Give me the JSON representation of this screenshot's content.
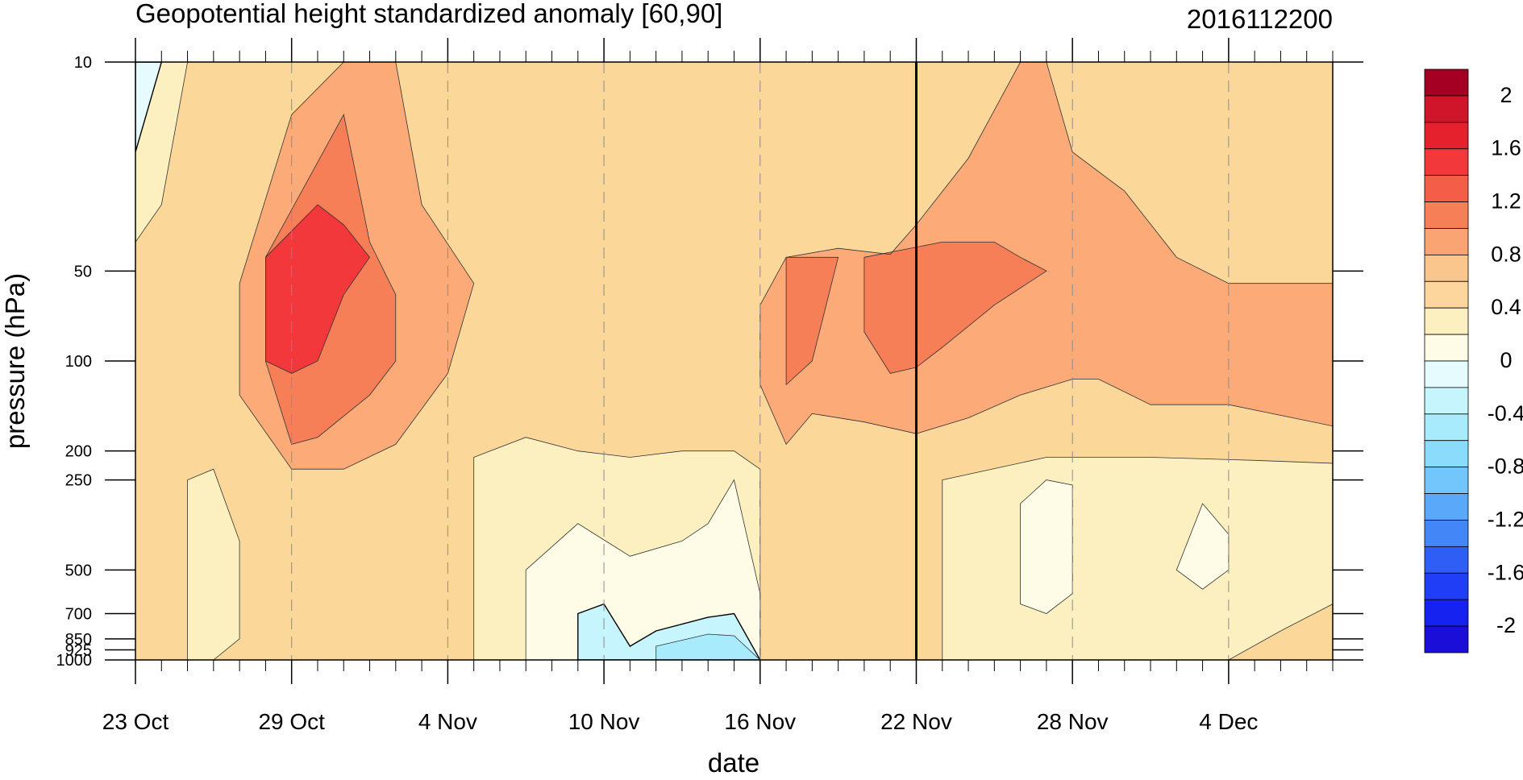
{
  "chart_data": {
    "type": "heatmap",
    "title": "Geopotential height standardized anomaly [60,90]",
    "subtitle": "2016112200",
    "xlabel": "date",
    "ylabel": "pressure (hPa)",
    "x_tick_labels": [
      "23 Oct",
      "29 Oct",
      "4 Nov",
      "10 Nov",
      "16 Nov",
      "22 Nov",
      "28 Nov",
      "4 Dec"
    ],
    "x_dates": [
      "2016-10-23",
      "2016-10-29",
      "2016-11-04",
      "2016-11-10",
      "2016-11-16",
      "2016-11-22",
      "2016-11-28",
      "2016-12-04"
    ],
    "xlim": [
      "2016-10-23",
      "2016-12-08"
    ],
    "y_tick_labels": [
      "10",
      "50",
      "100",
      "200",
      "250",
      "500",
      "700",
      "850",
      "925",
      "1000"
    ],
    "y_levels": [
      10,
      50,
      100,
      200,
      250,
      500,
      700,
      850,
      925,
      1000
    ],
    "ylim": [
      1000,
      10
    ],
    "y_scale": "log",
    "y_reversed": true,
    "marker_line_date": "2016-11-22",
    "colorbar": {
      "tick_labels": [
        "2",
        "1.6",
        "1.2",
        "0.8",
        "0.4",
        "0",
        "-0.4",
        "-0.8",
        "-1.2",
        "-1.6",
        "-2"
      ],
      "levels": [
        -2.2,
        -2.0,
        -1.8,
        -1.6,
        -1.4,
        -1.2,
        -1.0,
        -0.8,
        -0.6,
        -0.4,
        -0.2,
        0.0,
        0.2,
        0.4,
        0.6,
        0.8,
        1.0,
        1.2,
        1.4,
        1.6,
        1.8,
        2.0,
        2.2
      ],
      "colors": [
        "#1a0ed8",
        "#1522f0",
        "#203ef5",
        "#2f5ef6",
        "#4386f8",
        "#5aa8fa",
        "#72c6fb",
        "#8bdcfc",
        "#a7ebfd",
        "#c6f5fe",
        "#e5fbfe",
        "#fefbe6",
        "#fdf0c0",
        "#fcd69c",
        "#fbc58e",
        "#faa373",
        "#f77f58",
        "#f45e49",
        "#f2383b",
        "#e6212e",
        "#d0152a",
        "#a50023"
      ]
    },
    "regions": [
      {
        "level": 0.6,
        "color": "#fbd79a",
        "points": [
          [
            "2016-10-23",
            10
          ],
          [
            "2016-12-08",
            10
          ],
          [
            "2016-12-08",
            1000
          ],
          [
            "2016-10-23",
            1000
          ]
        ]
      },
      {
        "level": 1.0,
        "color": "#fbaa78",
        "points": [
          [
            "2016-10-27",
            55
          ],
          [
            "2016-10-29",
            15
          ],
          [
            "2016-10-31",
            10
          ],
          [
            "2016-11-02",
            10
          ],
          [
            "2016-11-03",
            30
          ],
          [
            "2016-11-05",
            55
          ],
          [
            "2016-11-04",
            110
          ],
          [
            "2016-11-02",
            190
          ],
          [
            "2016-10-31",
            230
          ],
          [
            "2016-10-29",
            230
          ],
          [
            "2016-10-27",
            130
          ],
          [
            "2016-10-27",
            100
          ]
        ]
      },
      {
        "level": 1.0,
        "color": "#fbaa78",
        "points": [
          [
            "2016-11-16",
            65
          ],
          [
            "2016-11-17",
            45
          ],
          [
            "2016-11-19",
            42
          ],
          [
            "2016-11-21",
            44
          ],
          [
            "2016-11-22",
            35
          ],
          [
            "2016-11-24",
            21
          ],
          [
            "2016-11-26",
            10
          ],
          [
            "2016-11-27",
            10
          ],
          [
            "2016-11-28",
            20
          ],
          [
            "2016-11-30",
            27
          ],
          [
            "2016-12-02",
            45
          ],
          [
            "2016-12-04",
            55
          ],
          [
            "2016-12-08",
            55
          ],
          [
            "2016-12-08",
            165
          ],
          [
            "2016-12-04",
            140
          ],
          [
            "2016-12-01",
            140
          ],
          [
            "2016-11-29",
            115
          ],
          [
            "2016-11-28",
            115
          ],
          [
            "2016-11-26",
            130
          ],
          [
            "2016-11-24",
            155
          ],
          [
            "2016-11-22",
            175
          ],
          [
            "2016-11-20",
            160
          ],
          [
            "2016-11-18",
            150
          ],
          [
            "2016-11-17",
            190
          ],
          [
            "2016-11-16",
            120
          ]
        ]
      },
      {
        "level": 1.2,
        "color": "#f77f58",
        "points": [
          [
            "2016-10-28",
            45
          ],
          [
            "2016-10-31",
            15
          ],
          [
            "2016-11-01",
            40
          ],
          [
            "2016-11-02",
            60
          ],
          [
            "2016-11-02",
            100
          ],
          [
            "2016-11-01",
            130
          ],
          [
            "2016-10-30",
            180
          ],
          [
            "2016-10-29",
            190
          ],
          [
            "2016-10-28",
            100
          ]
        ]
      },
      {
        "level": 1.2,
        "color": "#f77f58",
        "points": [
          [
            "2016-11-20",
            45
          ],
          [
            "2016-11-23",
            40
          ],
          [
            "2016-11-25",
            40
          ],
          [
            "2016-11-26",
            45
          ],
          [
            "2016-11-27",
            50
          ],
          [
            "2016-11-25",
            65
          ],
          [
            "2016-11-23",
            90
          ],
          [
            "2016-11-22",
            105
          ],
          [
            "2016-11-21",
            110
          ],
          [
            "2016-11-20",
            80
          ]
        ]
      },
      {
        "level": 1.2,
        "color": "#f77f58",
        "points": [
          [
            "2016-11-17",
            45
          ],
          [
            "2016-11-19",
            45
          ],
          [
            "2016-11-18",
            100
          ],
          [
            "2016-11-17",
            120
          ]
        ]
      },
      {
        "level": 1.6,
        "color": "#f2383b",
        "points": [
          [
            "2016-10-28",
            45
          ],
          [
            "2016-10-30",
            30
          ],
          [
            "2016-10-31",
            35
          ],
          [
            "2016-11-01",
            45
          ],
          [
            "2016-10-31",
            60
          ],
          [
            "2016-10-30",
            100
          ],
          [
            "2016-10-29",
            110
          ],
          [
            "2016-10-28",
            100
          ],
          [
            "2016-10-28",
            60
          ]
        ]
      },
      {
        "level": 0.2,
        "color": "#fdf0c0",
        "points": [
          [
            "2016-10-23",
            10
          ],
          [
            "2016-10-25",
            10
          ],
          [
            "2016-10-24",
            30
          ],
          [
            "2016-10-23",
            40
          ]
        ]
      },
      {
        "level": -0.2,
        "color": "#e5fbfe",
        "points": [
          [
            "2016-10-23",
            10
          ],
          [
            "2016-10-24",
            10
          ],
          [
            "2016-10-23",
            20
          ]
        ]
      },
      {
        "level": 0.2,
        "color": "#fdf0c0",
        "points": [
          [
            "2016-11-05",
            210
          ],
          [
            "2016-11-07",
            180
          ],
          [
            "2016-11-09",
            200
          ],
          [
            "2016-11-11",
            210
          ],
          [
            "2016-11-13",
            200
          ],
          [
            "2016-11-15",
            200
          ],
          [
            "2016-11-16",
            230
          ],
          [
            "2016-11-16",
            1000
          ],
          [
            "2016-11-05",
            1000
          ]
        ]
      },
      {
        "level": 0.0,
        "color": "#fefbe6",
        "points": [
          [
            "2016-11-07",
            500
          ],
          [
            "2016-11-09",
            350
          ],
          [
            "2016-11-11",
            450
          ],
          [
            "2016-11-13",
            400
          ],
          [
            "2016-11-14",
            350
          ],
          [
            "2016-11-15",
            250
          ],
          [
            "2016-11-16",
            600
          ],
          [
            "2016-11-16",
            1000
          ],
          [
            "2016-11-07",
            1000
          ]
        ]
      },
      {
        "level": -0.2,
        "color": "#c6f5fe",
        "points": [
          [
            "2016-11-09",
            700
          ],
          [
            "2016-11-10",
            650
          ],
          [
            "2016-11-11",
            900
          ],
          [
            "2016-11-12",
            800
          ],
          [
            "2016-11-14",
            720
          ],
          [
            "2016-11-15",
            700
          ],
          [
            "2016-11-16",
            1000
          ],
          [
            "2016-11-09",
            1000
          ]
        ]
      },
      {
        "level": -0.4,
        "color": "#a7ebfd",
        "points": [
          [
            "2016-11-12",
            900
          ],
          [
            "2016-11-14",
            820
          ],
          [
            "2016-11-15",
            830
          ],
          [
            "2016-11-16",
            1000
          ],
          [
            "2016-11-12",
            1000
          ]
        ]
      },
      {
        "level": 0.2,
        "color": "#fdf0c0",
        "points": [
          [
            "2016-11-23",
            250
          ],
          [
            "2016-11-27",
            210
          ],
          [
            "2016-12-01",
            210
          ],
          [
            "2016-12-05",
            215
          ],
          [
            "2016-12-08",
            220
          ],
          [
            "2016-12-08",
            650
          ],
          [
            "2016-12-06",
            800
          ],
          [
            "2016-12-04",
            1000
          ],
          [
            "2016-11-23",
            1000
          ]
        ]
      },
      {
        "level": 0.0,
        "color": "#fefbe6",
        "points": [
          [
            "2016-11-26",
            300
          ],
          [
            "2016-11-27",
            250
          ],
          [
            "2016-11-28",
            260
          ],
          [
            "2016-11-28",
            600
          ],
          [
            "2016-11-27",
            700
          ],
          [
            "2016-11-26",
            650
          ]
        ]
      },
      {
        "level": 0.0,
        "color": "#fefbe6",
        "points": [
          [
            "2016-12-02",
            500
          ],
          [
            "2016-12-03",
            300
          ],
          [
            "2016-12-04",
            380
          ],
          [
            "2016-12-04",
            500
          ],
          [
            "2016-12-03",
            580
          ]
        ]
      },
      {
        "level": 0.2,
        "color": "#fdf0c0",
        "points": [
          [
            "2016-10-25",
            250
          ],
          [
            "2016-10-26",
            230
          ],
          [
            "2016-10-27",
            400
          ],
          [
            "2016-10-27",
            850
          ],
          [
            "2016-10-26",
            1000
          ],
          [
            "2016-10-25",
            1000
          ]
        ]
      }
    ]
  }
}
